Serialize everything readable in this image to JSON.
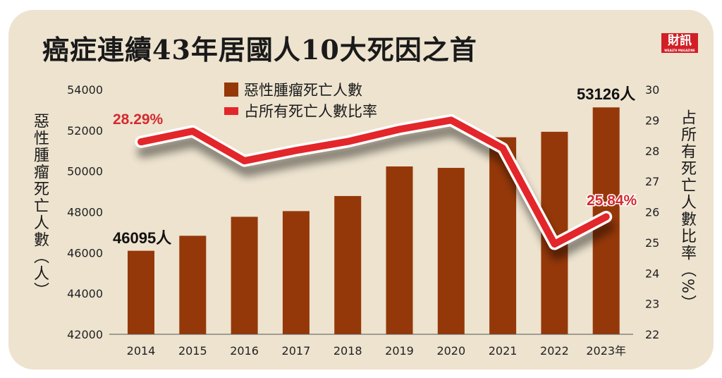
{
  "title": "癌症連續43年居國人10大死因之首",
  "logo": {
    "text": "財訊",
    "subtext": "WEALTH MAGAZINE",
    "color": "#d21f26"
  },
  "chart_data": {
    "type": "bar+line",
    "categories": [
      "2014",
      "2015",
      "2016",
      "2017",
      "2018",
      "2019",
      "2020",
      "2021",
      "2022",
      "2023年"
    ],
    "series": [
      {
        "name": "惡性腫瘤死亡人數",
        "type": "bar",
        "axis": "left",
        "color": "#953809",
        "values": [
          46095,
          46830,
          47760,
          48040,
          48780,
          50230,
          50160,
          51660,
          51930,
          53126
        ]
      },
      {
        "name": "占所有死亡人數比率",
        "type": "line",
        "axis": "right",
        "color": "#e3262b",
        "values": [
          28.29,
          28.64,
          27.67,
          28.01,
          28.3,
          28.7,
          29.0,
          28.08,
          24.95,
          25.84
        ]
      }
    ],
    "ylabel_left": "惡性腫瘤死亡人數（人）",
    "ylabel_right": "占所有死亡人數比率（%）",
    "ylim_left": [
      42000,
      54000
    ],
    "yticks_left": [
      "54000",
      "52000",
      "50000",
      "48000",
      "46000",
      "44000",
      "42000"
    ],
    "ylim_right": [
      22,
      30
    ],
    "yticks_right": [
      "30",
      "29",
      "28",
      "27",
      "26",
      "25",
      "24",
      "23",
      "22"
    ],
    "annotations": [
      {
        "text": "46095人",
        "target": "2014 bar"
      },
      {
        "text": "53126人",
        "target": "2023 bar"
      },
      {
        "text": "28.29%",
        "target": "2014 line"
      },
      {
        "text": "25.84%",
        "target": "2023 line"
      }
    ],
    "legend": "top-center",
    "grid": false
  }
}
